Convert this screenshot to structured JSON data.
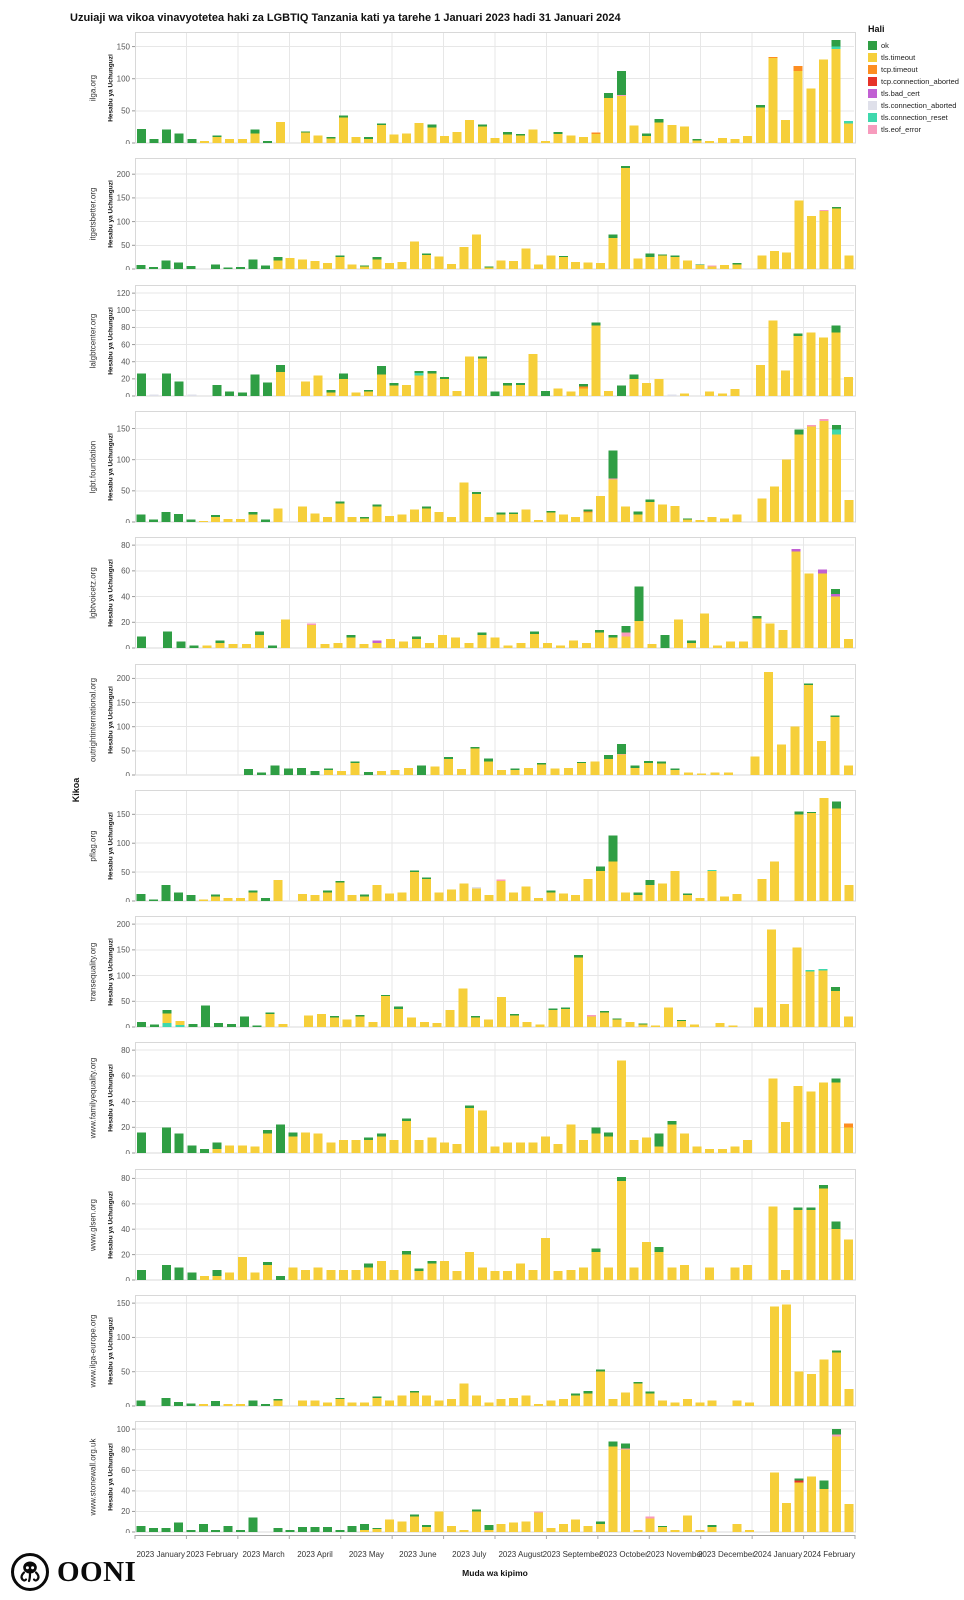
{
  "title": "Uzuiaji wa vikoa vinavyotetea haki za LGBTIQ Tanzania kati ya tarehe 1 Januari 2023 hadi 31 Januari 2024",
  "brand": "OONI",
  "legend": {
    "title": "Hali",
    "items": [
      {
        "key": "ok",
        "label": "ok",
        "color": "#2f9e44"
      },
      {
        "key": "tt",
        "label": "tls.timeout",
        "color": "#f6cf3a"
      },
      {
        "key": "tcpt",
        "label": "tcp.timeout",
        "color": "#fd8d21"
      },
      {
        "key": "tca",
        "label": "tcp.connection_aborted",
        "color": "#e63329"
      },
      {
        "key": "bad",
        "label": "tls.bad_cert",
        "color": "#c160d3"
      },
      {
        "key": "tlsca",
        "label": "tls.connection_aborted",
        "color": "#dfe0ea"
      },
      {
        "key": "reset",
        "label": "tls.connection_reset",
        "color": "#3fd8ad"
      },
      {
        "key": "eof",
        "label": "tls.eof_error",
        "color": "#f79bbd"
      }
    ]
  },
  "axes": {
    "x_label": "Muda wa kipimo",
    "y_outer_label": "Kikoa",
    "y_panel_label": "Hesabu ya Uchunguzi",
    "x_ticks": [
      "2023 January",
      "2023 February",
      "2023 March",
      "2023 April",
      "2023 May",
      "2023 June",
      "2023 July",
      "2023 August",
      "2023 September",
      "2023 October",
      "2023 November",
      "2023 December",
      "2024 January",
      "2024 February"
    ]
  },
  "chart_data": {
    "type": "bar",
    "stacked": true,
    "unit": "weekly measurement count",
    "bar_format": "comma-separated key:value segments stacked bottom-to-top; keys map to legend items; empty string = no measurements that week",
    "keys": {
      "ok": "ok",
      "tt": "tls.timeout",
      "tcpt": "tcp.timeout",
      "tca": "tcp.connection_aborted",
      "bad": "tls.bad_cert",
      "tlsca": "tls.connection_aborted",
      "reset": "tls.connection_reset",
      "eof": "tls.eof_error"
    },
    "panels": [
      {
        "domain": "ilga.org",
        "yticks": [
          0,
          50,
          100,
          150
        ],
        "bars": [
          "ok:22",
          "ok:6",
          "ok:21",
          "ok:15",
          "ok:6",
          "tt:3",
          "tt:9,ok:3",
          "tt:6",
          "tt:6",
          "tt:15,ok:6",
          "ok:3",
          "tt:33",
          "",
          "tt:16,ok:2",
          "tt:12",
          "tt:7,ok:2",
          "tt:40,ok:3",
          "tt:9",
          "tt:6,ok:3",
          "tt:28,ok:2",
          "tt:13",
          "tt:15",
          "tt:31",
          "tt:24,ok:5",
          "tt:11",
          "tt:17",
          "tt:36",
          "tt:26,ok:3",
          "tt:8",
          "tt:13,ok:4",
          "tt:12,ok:2",
          "tt:21",
          "tt:3",
          "tt:14,ok:3",
          "tt:12",
          "tt:9",
          "tt:14,tcpt:2",
          "tt:70,ok:8",
          "tt:73,eof:2,ok:37",
          "tt:27",
          "tt:11,ok:4",
          "tt:32,ok:5",
          "tt:28",
          "tt:26",
          "tt:4,ok:2",
          "tt:3",
          "tt:8",
          "tt:6",
          "tt:11",
          "tt:55,ok:4",
          "tt:132,tcpt:2",
          "tt:36",
          "tt:112,tcpt:8",
          "tt:85",
          "tt:130",
          "tt:146,reset:4,ok:10",
          "tt:30,reset:4"
        ]
      },
      {
        "domain": "itgetsbetter.org",
        "yticks": [
          0,
          50,
          100,
          150,
          200
        ],
        "bars": [
          "ok:8",
          "ok:4",
          "ok:18",
          "ok:14",
          "ok:6",
          "",
          "ok:10",
          "ok:3",
          "ok:4",
          "ok:20",
          "ok:7",
          "tt:18,ok:7",
          "tt:23",
          "tt:20",
          "tt:17",
          "tt:13",
          "tt:25,ok:3",
          "tt:10",
          "tt:5,ok:2",
          "tt:20,ok:5",
          "tt:13",
          "tt:15",
          "tt:58",
          "tt:30,ok:3",
          "tt:26",
          "tt:11",
          "tt:46",
          "tt:73",
          "tt:3,ok:2",
          "tt:18",
          "tt:17",
          "tt:43",
          "tt:10",
          "tt:28",
          "tt:25,ok:2",
          "tt:15",
          "tt:14",
          "tt:13",
          "tt:65,ok:8",
          "tt:213,ok:4",
          "tt:22",
          "tt:25,ok:8",
          "tt:28,ok:3",
          "tt:25,ok:4",
          "tt:18",
          "tt:8,ok:2",
          "tt:5,eof:2",
          "tt:8",
          "tt:10,ok:3",
          "",
          "tt:28",
          "tt:38",
          "tt:35",
          "tt:145",
          "tt:112",
          "tt:122,eof:3",
          "tt:128,ok:3",
          "tt:28"
        ]
      },
      {
        "domain": "lalgbtcenter.org",
        "yticks": [
          0,
          20,
          40,
          60,
          80,
          100,
          120
        ],
        "bars": [
          "ok:26",
          "tlsca:2",
          "ok:26",
          "ok:17",
          "tlsca:2",
          "",
          "ok:13",
          "ok:5",
          "ok:4",
          "ok:25",
          "ok:16",
          "tt:28,ok:8",
          "",
          "tt:17",
          "tt:24",
          "tt:4,ok:3",
          "tt:20,ok:6",
          "tt:4",
          "tt:5,ok:2",
          "tt:25,ok:10",
          "tt:12,ok:3",
          "tt:13",
          "tt:24,reset:3,ok:2",
          "tt:26,ok:3",
          "tt:20,ok:2",
          "tt:6",
          "tt:46",
          "tt:44,ok:2",
          "ok:5",
          "tt:12,ok:3",
          "tt:13,ok:2",
          "tt:49",
          "ok:6",
          "tt:9",
          "tt:5",
          "tt:9,tcpt:2,ok:3",
          "tt:82,ok:4",
          "tt:6",
          "ok:12",
          "tt:20,ok:5",
          "tt:15",
          "tt:20",
          "tlsca:2",
          "tt:3",
          "",
          "tt:5",
          "tt:3",
          "tt:8",
          "",
          "tt:36",
          "tt:88",
          "tt:30",
          "tt:70,ok:3",
          "tt:74",
          "tt:68",
          "tt:74,ok:8",
          "tt:22"
        ]
      },
      {
        "domain": "lgbt.foundation",
        "yticks": [
          0,
          50,
          100,
          150
        ],
        "bars": [
          "ok:12",
          "ok:4",
          "ok:16",
          "ok:13",
          "ok:4",
          "tt:2",
          "tt:8,ok:3",
          "tt:5",
          "tt:5",
          "tt:12,ok:4",
          "ok:4",
          "tt:22",
          "",
          "tt:25",
          "tt:14",
          "tt:8",
          "tt:30,ok:3",
          "tt:8",
          "tt:6,ok:2",
          "tt:25,ok:3",
          "tt:10",
          "tt:12",
          "tt:20",
          "tt:22,ok:3",
          "tt:16",
          "tt:8",
          "tt:63",
          "tt:45,ok:3",
          "tt:8",
          "tt:12,ok:3",
          "tt:13,ok:2",
          "tt:20",
          "tt:3",
          "tt:15,ok:3",
          "tt:12",
          "tt:8",
          "tt:15,tcpt:2,ok:3",
          "tt:42",
          "tt:68,eof:2,ok:45",
          "tt:25",
          "tt:12,ok:5",
          "tt:32,ok:4",
          "tt:28",
          "tt:26",
          "tt:4,ok:2",
          "tt:3",
          "tt:8",
          "tt:6",
          "tt:12",
          "",
          "tt:38",
          "tt:57",
          "tt:100",
          "tt:140,ok:8",
          "tt:153,eof:3",
          "tt:162,eof:3",
          "tt:140,reset:8,ok:8",
          "tt:35"
        ]
      },
      {
        "domain": "lgbtvoicetz.org",
        "yticks": [
          0,
          20,
          40,
          60,
          80
        ],
        "bars": [
          "ok:9",
          "",
          "ok:13",
          "ok:5",
          "ok:2",
          "tt:2",
          "tt:4,ok:2",
          "tt:3",
          "tt:3",
          "tt:10,ok:3",
          "ok:2",
          "tt:22",
          "",
          "tt:18,eof:1",
          "tt:3",
          "tt:4",
          "tt:8,ok:2",
          "tt:3",
          "tt:4,bad:2",
          "tt:7",
          "tt:5",
          "tt:7,ok:2",
          "tt:4",
          "tt:10",
          "tt:8",
          "tt:4",
          "tt:10,ok:2",
          "tt:8",
          "tt:2",
          "tt:4",
          "tt:11,ok:2",
          "tt:4",
          "tt:2",
          "tt:6",
          "tt:4",
          "tt:12,ok:2",
          "tt:8,ok:2",
          "tt:9,eof:3,ok:5",
          "tt:21,ok:27",
          "tt:3",
          "ok:10",
          "tt:22",
          "tt:4,ok:2",
          "tt:27",
          "tt:2",
          "tt:5",
          "tt:5",
          "tt:23,ok:2",
          "tt:19",
          "tt:14",
          "tt:75,bad:2",
          "tt:58",
          "tt:58,bad:3",
          "tt:40,bad:2,ok:4",
          "tt:7"
        ]
      },
      {
        "domain": "outrightinternational.org",
        "yticks": [
          0,
          50,
          100,
          150,
          200
        ],
        "bars": [
          "",
          "",
          "",
          "",
          "",
          "",
          "",
          "",
          "ok:12",
          "ok:5",
          "ok:20",
          "ok:13",
          "ok:15",
          "ok:8",
          "tt:10,ok:3",
          "tt:8",
          "tt:25,ok:3",
          "ok:6",
          "tt:8",
          "tt:10",
          "tt:15",
          "ok:20",
          "tt:18",
          "tt:33,ok:4",
          "tt:12",
          "tt:55,ok:3",
          "tt:28,ok:6",
          "tt:10",
          "tt:10,ok:3",
          "tt:15",
          "tt:22,ok:3",
          "tt:13",
          "tt:15",
          "tt:25,ok:2",
          "tt:28",
          "tt:33,ok:8",
          "tt:42,eof:2,ok:20",
          "tt:15,ok:5",
          "tt:25,ok:4",
          "tt:24,ok:4",
          "tt:10,ok:3",
          "tt:5",
          "tt:3",
          "tt:5",
          "tt:5",
          "",
          "tt:38",
          "tt:213",
          "tt:63",
          "tt:100",
          "tt:186,ok:3",
          "tt:70",
          "tt:120,ok:3",
          "tt:20"
        ]
      },
      {
        "domain": "pflag.org",
        "yticks": [
          0,
          50,
          100,
          150
        ],
        "bars": [
          "ok:12",
          "ok:3",
          "ok:28",
          "ok:15",
          "ok:10",
          "tt:3",
          "tt:8,ok:3",
          "tt:5",
          "tt:5",
          "tt:15,ok:3",
          "ok:5",
          "tt:36",
          "",
          "tt:12",
          "tt:10",
          "tt:15,ok:3",
          "tt:32,ok:3",
          "tt:10",
          "tt:8,ok:3",
          "tt:28",
          "tt:13",
          "tt:15",
          "tt:50,ok:3",
          "tt:38,ok:3",
          "tt:15",
          "tt:20",
          "tt:30",
          "tt:22,tlsca:2",
          "tt:10",
          "tt:35,eof:2",
          "tt:15",
          "tt:25",
          "tt:5",
          "tt:15,ok:3",
          "tt:13",
          "tt:10",
          "tt:38",
          "tt:52,ok:8",
          "tt:68,ok:45",
          "tt:15",
          "tt:10,ok:5",
          "tt:28,ok:8",
          "tt:30",
          "tt:52",
          "tt:10,ok:3",
          "tt:5",
          "tt:52,reset:2",
          "tt:8",
          "tt:12",
          "",
          "tt:38",
          "tt:68",
          "",
          "tt:150,ok:5",
          "tt:152,ok:2",
          "tt:178",
          "tt:160,ok:12",
          "tt:28"
        ]
      },
      {
        "domain": "transequality.org",
        "yticks": [
          0,
          50,
          100,
          150,
          200
        ],
        "bars": [
          "ok:10",
          "ok:5",
          "reset:8,tt:18,ok:7",
          "reset:4,tt:8",
          "ok:6",
          "ok:42",
          "ok:8",
          "ok:6",
          "ok:20",
          "ok:3",
          "tt:25,ok:3",
          "tt:6",
          "",
          "tt:22",
          "tt:25",
          "tt:18,ok:3",
          "tt:15",
          "tt:20,ok:3",
          "tt:10",
          "tt:60,ok:2",
          "tt:35,ok:5",
          "tt:18",
          "tt:10",
          "tt:8",
          "tt:33",
          "tt:75",
          "tt:18,ok:3",
          "tt:15",
          "tt:58",
          "tt:22,ok:3",
          "tt:10",
          "tt:5",
          "tt:33,ok:3",
          "tt:35,ok:3",
          "tt:135,ok:5",
          "tt:20,eof:3",
          "tt:28,ok:3",
          "tt:15,ok:2",
          "tt:10",
          "tt:5,ok:2",
          "tt:3",
          "tt:38",
          "tt:12,ok:2",
          "tt:5",
          "",
          "tt:8",
          "tt:3",
          "",
          "tt:38",
          "tt:190",
          "tt:45",
          "tt:155",
          "tt:108,reset:3",
          "tt:110,reset:3",
          "tt:70,ok:8",
          "tt:20"
        ]
      },
      {
        "domain": "www.familyequality.org",
        "yticks": [
          0,
          20,
          40,
          60,
          80
        ],
        "bars": [
          "ok:16",
          "",
          "ok:20",
          "ok:15",
          "ok:6",
          "ok:3",
          "tt:3,ok:5",
          "tt:6",
          "tt:6",
          "tt:5",
          "tt:15,ok:3",
          "ok:22",
          "tt:13,ok:3",
          "tt:16",
          "tt:15",
          "tt:8",
          "tt:10",
          "tt:10",
          "tt:10,ok:2",
          "tt:13,ok:2",
          "tt:10",
          "tt:25,ok:2",
          "tt:10",
          "tt:12",
          "tt:8",
          "tt:7",
          "tt:35,ok:2",
          "tt:33",
          "tt:5",
          "tt:8",
          "tt:8",
          "tt:8",
          "tt:13",
          "tt:7",
          "tt:22",
          "tt:10",
          "tt:15,ok:5",
          "tt:13,ok:3",
          "tt:72",
          "tt:10",
          "tt:12",
          "tt:5,ok:10",
          "tt:22,ok:3",
          "tt:15",
          "tt:5",
          "tt:3",
          "tt:3",
          "tt:5",
          "tt:10",
          "",
          "tt:58",
          "tt:24",
          "tt:52",
          "tt:48",
          "tt:55",
          "tt:55,ok:3",
          "tt:20,tcpt:3"
        ]
      },
      {
        "domain": "www.glsen.org",
        "yticks": [
          0,
          20,
          40,
          60,
          80
        ],
        "bars": [
          "ok:8",
          "",
          "ok:12",
          "ok:10",
          "ok:6",
          "tt:3",
          "tt:3,ok:5",
          "tt:6",
          "tt:18",
          "tt:6",
          "tt:12,ok:2",
          "ok:3",
          "tt:10",
          "tt:8",
          "tt:10",
          "tt:8",
          "tt:8",
          "tt:8",
          "tt:10,ok:3",
          "tt:15",
          "tt:8",
          "tt:20,ok:3",
          "tt:7,ok:2",
          "tt:13,ok:2",
          "tt:15",
          "tt:7",
          "tt:22",
          "tt:10",
          "tt:7",
          "tt:7",
          "tt:13",
          "tt:8",
          "tt:33",
          "tt:7",
          "tt:8",
          "tt:10",
          "tt:22,ok:3",
          "tt:10",
          "tt:78,ok:3",
          "tt:10",
          "tt:30",
          "tt:22,ok:4",
          "tt:10",
          "tt:12",
          "",
          "tt:10",
          "",
          "tt:10",
          "tt:12",
          "",
          "tt:58",
          "tt:8",
          "tt:55,ok:2",
          "tt:55,ok:2",
          "tt:72,ok:3",
          "tt:40,ok:6",
          "tt:32"
        ]
      },
      {
        "domain": "www.ilga-europe.org",
        "yticks": [
          0,
          50,
          100,
          150
        ],
        "bars": [
          "ok:8",
          "",
          "ok:12",
          "ok:6",
          "ok:4",
          "tt:3",
          "ok:7",
          "tt:3",
          "tt:3",
          "ok:8",
          "ok:3",
          "tt:8,ok:2",
          "",
          "tt:8",
          "tt:8",
          "tt:5",
          "tt:10,ok:2",
          "tt:5",
          "tt:5",
          "tt:12,ok:2",
          "tt:8",
          "tt:15",
          "tt:20,ok:2",
          "tt:15",
          "tt:8",
          "tt:10",
          "tt:33",
          "tt:15",
          "tt:5",
          "tt:10",
          "tt:12",
          "tt:15",
          "tt:3",
          "tt:8",
          "tt:10",
          "tt:15,ok:3",
          "tt:18,ok:4",
          "tt:50,ok:3",
          "tt:10",
          "tt:20",
          "tt:33,ok:2",
          "tt:18,ok:3",
          "tt:8",
          "tt:5",
          "tt:10",
          "tt:5",
          "tt:8",
          "",
          "tt:8",
          "tt:5",
          "",
          "tt:145",
          "tt:148",
          "tt:50",
          "tt:47",
          "tt:68",
          "tt:78,ok:3",
          "tt:25"
        ]
      },
      {
        "domain": "www.stonewall.org.uk",
        "yticks": [
          0,
          20,
          40,
          60,
          80,
          100
        ],
        "bars": [
          "ok:6",
          "ok:4",
          "ok:4",
          "ok:9",
          "ok:2",
          "ok:8",
          "ok:2",
          "ok:6",
          "ok:2",
          "ok:14",
          "",
          "ok:4",
          "ok:2",
          "ok:5",
          "ok:5",
          "ok:5",
          "ok:2",
          "ok:6",
          "tt:2,ok:6",
          "tt:3,ok:1",
          "tt:12",
          "tt:10",
          "tt:15,ok:2",
          "tt:5,ok:2",
          "tt:20",
          "tt:6",
          "tt:2",
          "tt:20,ok:2",
          "tt:2,ok:5",
          "tt:8",
          "tt:9",
          "tt:10",
          "tt:19,eof:1",
          "tt:4",
          "tt:8",
          "tt:12",
          "tt:6",
          "tt:8,ok:2",
          "tt:83,ok:5",
          "tt:80,eof:1,ok:5",
          "tt:2",
          "tt:13,eof:2",
          "tt:5,ok:1",
          "tt:2",
          "tt:16",
          "tt:2",
          "tt:5,ok:2",
          "",
          "tt:8",
          "tt:2",
          "",
          "tt:58",
          "tt:28",
          "tt:48,tca:2,ok:2",
          "tt:54",
          "tt:42,ok:8",
          "tt:93,eof:2,ok:5",
          "tt:27"
        ]
      }
    ]
  }
}
